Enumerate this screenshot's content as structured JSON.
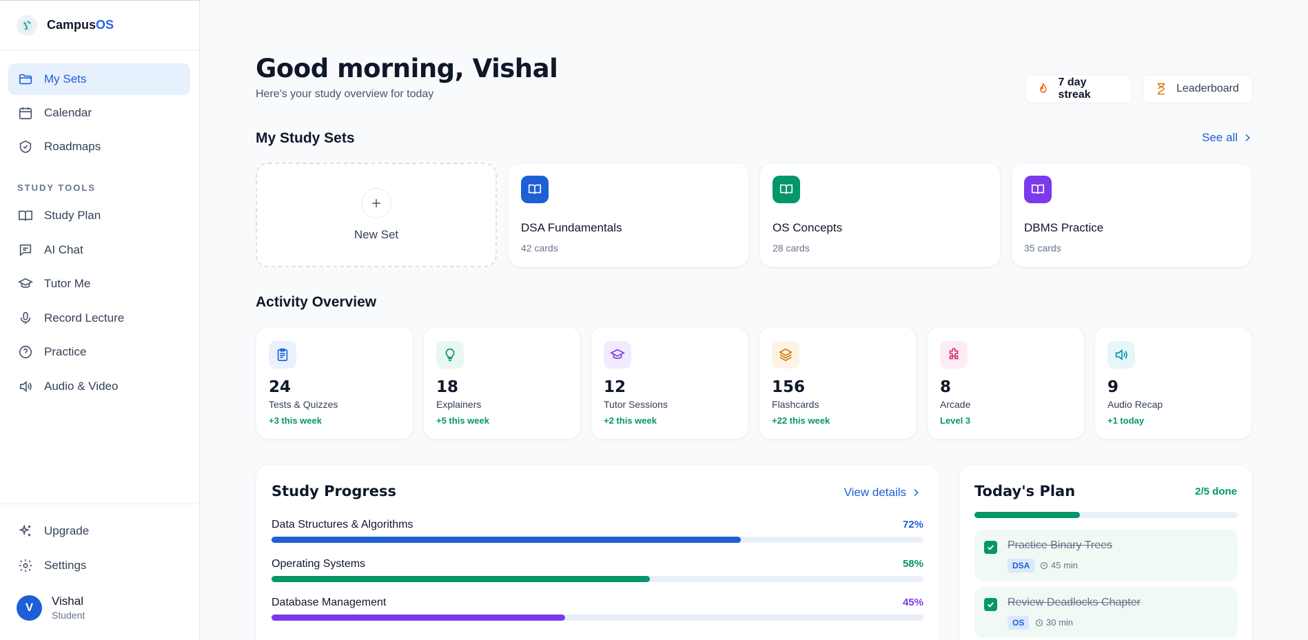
{
  "brand": {
    "name_main": "Campus",
    "name_accent": "OS"
  },
  "sidebar": {
    "items": [
      {
        "label": "My Sets"
      },
      {
        "label": "Calendar"
      },
      {
        "label": "Roadmaps"
      }
    ],
    "section_label": "STUDY TOOLS",
    "tools": [
      {
        "label": "Study Plan"
      },
      {
        "label": "AI Chat"
      },
      {
        "label": "Tutor Me"
      },
      {
        "label": "Record Lecture"
      },
      {
        "label": "Practice"
      },
      {
        "label": "Audio & Video"
      }
    ],
    "bottom": [
      {
        "label": "Upgrade"
      },
      {
        "label": "Settings"
      }
    ],
    "user": {
      "initial": "V",
      "name": "Vishal",
      "role": "Student"
    }
  },
  "header": {
    "greeting": "Good morning, Vishal",
    "subtitle": "Here's your study overview for today",
    "streak": "7 day streak",
    "leaderboard": "Leaderboard"
  },
  "study_sets": {
    "title": "My Study Sets",
    "see_all": "See all",
    "new_label": "New Set",
    "sets": [
      {
        "title": "DSA Fundamentals",
        "count": "42 cards",
        "color": "#1d5fd6"
      },
      {
        "title": "OS Concepts",
        "count": "28 cards",
        "color": "#059669"
      },
      {
        "title": "DBMS Practice",
        "count": "35 cards",
        "color": "#7c3aed"
      }
    ]
  },
  "activity": {
    "title": "Activity Overview",
    "cards": [
      {
        "value": "24",
        "label": "Tests & Quizzes",
        "delta": "+3 this week",
        "icon": "clipboard-icon",
        "color": "#1d5fd6",
        "bg": "#eaf1fd"
      },
      {
        "value": "18",
        "label": "Explainers",
        "delta": "+5 this week",
        "icon": "lightbulb-icon",
        "color": "#059669",
        "bg": "#e8f7f0"
      },
      {
        "value": "12",
        "label": "Tutor Sessions",
        "delta": "+2 this week",
        "icon": "graduation-cap-icon",
        "color": "#7c3aed",
        "bg": "#f1ebfd"
      },
      {
        "value": "156",
        "label": "Flashcards",
        "delta": "+22 this week",
        "icon": "layers-icon",
        "color": "#d97706",
        "bg": "#fdf4e6"
      },
      {
        "value": "8",
        "label": "Arcade",
        "delta": "Level 3",
        "icon": "puzzle-icon",
        "color": "#db2777",
        "bg": "#fdecf4"
      },
      {
        "value": "9",
        "label": "Audio Recap",
        "delta": "+1 today",
        "icon": "speaker-icon",
        "color": "#0891b2",
        "bg": "#e6f6f9"
      }
    ]
  },
  "progress": {
    "title": "Study Progress",
    "view_details": "View details",
    "items": [
      {
        "name": "Data Structures & Algorithms",
        "pct_label": "72%",
        "value": 72,
        "color": "#1d5fd6"
      },
      {
        "name": "Operating Systems",
        "pct_label": "58%",
        "value": 58,
        "color": "#059669"
      },
      {
        "name": "Database Management",
        "pct_label": "45%",
        "value": 45,
        "color": "#7c3aed"
      }
    ]
  },
  "plan": {
    "title": "Today's Plan",
    "done_label": "2/5 done",
    "done_fraction": 0.4,
    "tasks": [
      {
        "title": "Practice Binary Trees",
        "tag": "DSA",
        "time": "45 min"
      },
      {
        "title": "Review Deadlocks Chapter",
        "tag": "OS",
        "time": "30 min"
      }
    ]
  }
}
